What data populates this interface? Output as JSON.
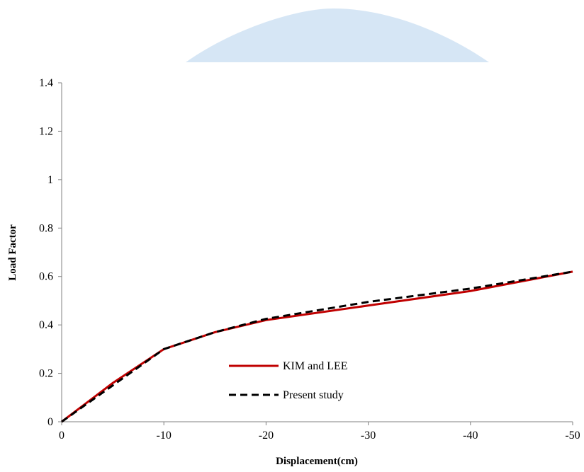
{
  "chart_data": {
    "type": "line",
    "x_label": "Displacement(cm)",
    "y_label": "Load Factor",
    "x": [
      0,
      -5,
      -10,
      -15,
      -20,
      -30,
      -40,
      -50
    ],
    "series": [
      {
        "name": "KIM and LEE",
        "color": "#c00000",
        "line_style": "solid",
        "values": [
          0,
          0.16,
          0.3,
          0.37,
          0.42,
          0.48,
          0.54,
          0.62
        ]
      },
      {
        "name": "Present study",
        "color": "#000000",
        "line_style": "dashed",
        "values": [
          0,
          0.15,
          0.3,
          0.37,
          0.425,
          0.495,
          0.55,
          0.62
        ]
      }
    ],
    "xlim": [
      0,
      -50
    ],
    "xticks": [
      0,
      -10,
      -20,
      -30,
      -40,
      -50
    ],
    "ylim": [
      0,
      1.4
    ],
    "yticks": [
      0,
      0.2,
      0.4,
      0.6,
      0.8,
      1,
      1.2,
      1.4
    ],
    "grid": false,
    "legend": "lower center"
  }
}
